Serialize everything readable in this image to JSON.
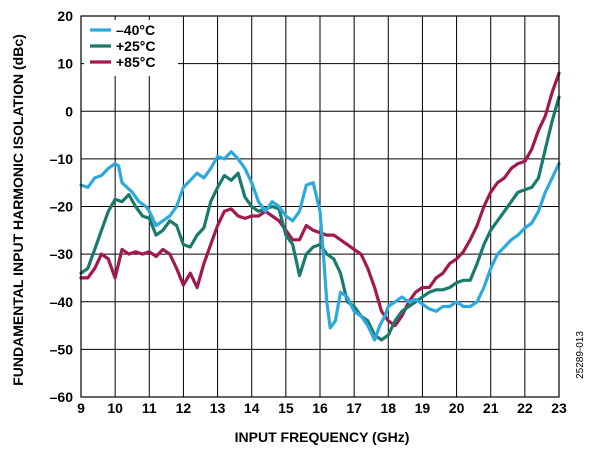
{
  "figure_id": "25289-013",
  "chart_data": {
    "type": "line",
    "title": "",
    "xlabel": "INPUT FREQUENCY (GHz)",
    "ylabel": "FUNDAMENTAL INPUT HARMONIC ISOLATION (dBc)",
    "xlim": [
      9,
      23
    ],
    "ylim": [
      -60,
      20
    ],
    "x_ticks": [
      9,
      10,
      11,
      12,
      13,
      14,
      15,
      16,
      17,
      18,
      19,
      20,
      21,
      22,
      23
    ],
    "y_ticks": [
      -60,
      -50,
      -40,
      -30,
      -20,
      -10,
      0,
      10,
      20
    ],
    "x_tick_labels": [
      "9",
      "10",
      "11",
      "12",
      "13",
      "14",
      "15",
      "16",
      "17",
      "18",
      "19",
      "20",
      "21",
      "22",
      "23"
    ],
    "y_tick_labels": [
      "–60",
      "–50",
      "–40",
      "–30",
      "–20",
      "–10",
      "0",
      "10",
      "20"
    ],
    "grid": true,
    "legend_position": "top-left",
    "series": [
      {
        "name": "–40°C",
        "color": "#2ea9df",
        "points": [
          [
            9.0,
            -15.5
          ],
          [
            9.2,
            -16
          ],
          [
            9.4,
            -14
          ],
          [
            9.6,
            -13.5
          ],
          [
            9.8,
            -12
          ],
          [
            10.0,
            -11
          ],
          [
            10.1,
            -11.5
          ],
          [
            10.2,
            -15
          ],
          [
            10.35,
            -16
          ],
          [
            10.5,
            -17
          ],
          [
            10.7,
            -19
          ],
          [
            10.9,
            -20
          ],
          [
            11.0,
            -21
          ],
          [
            11.2,
            -24
          ],
          [
            11.4,
            -23
          ],
          [
            11.6,
            -22
          ],
          [
            11.8,
            -20
          ],
          [
            12.0,
            -16
          ],
          [
            12.2,
            -14.5
          ],
          [
            12.4,
            -13
          ],
          [
            12.6,
            -14
          ],
          [
            12.8,
            -12
          ],
          [
            13.0,
            -9.5
          ],
          [
            13.2,
            -10
          ],
          [
            13.4,
            -8.5
          ],
          [
            13.6,
            -10
          ],
          [
            13.8,
            -12
          ],
          [
            14.0,
            -15
          ],
          [
            14.2,
            -19
          ],
          [
            14.4,
            -21
          ],
          [
            14.6,
            -19
          ],
          [
            14.8,
            -20
          ],
          [
            15.0,
            -22
          ],
          [
            15.2,
            -23
          ],
          [
            15.4,
            -21
          ],
          [
            15.6,
            -15.5
          ],
          [
            15.8,
            -15
          ],
          [
            16.0,
            -21
          ],
          [
            16.1,
            -30
          ],
          [
            16.2,
            -40
          ],
          [
            16.3,
            -45.5
          ],
          [
            16.45,
            -44
          ],
          [
            16.6,
            -38
          ],
          [
            16.8,
            -39
          ],
          [
            17.0,
            -42
          ],
          [
            17.2,
            -43
          ],
          [
            17.4,
            -45
          ],
          [
            17.6,
            -48
          ],
          [
            17.75,
            -45
          ],
          [
            17.9,
            -43
          ],
          [
            18.0,
            -41
          ],
          [
            18.2,
            -40
          ],
          [
            18.4,
            -39
          ],
          [
            18.6,
            -40
          ],
          [
            18.8,
            -39.5
          ],
          [
            19.0,
            -40.5
          ],
          [
            19.2,
            -41.5
          ],
          [
            19.4,
            -42
          ],
          [
            19.6,
            -41
          ],
          [
            19.8,
            -41
          ],
          [
            20.0,
            -40
          ],
          [
            20.2,
            -41
          ],
          [
            20.4,
            -41
          ],
          [
            20.6,
            -40
          ],
          [
            20.8,
            -37
          ],
          [
            21.0,
            -33
          ],
          [
            21.2,
            -30
          ],
          [
            21.4,
            -28.5
          ],
          [
            21.6,
            -27
          ],
          [
            21.8,
            -26
          ],
          [
            22.0,
            -24.5
          ],
          [
            22.2,
            -23.5
          ],
          [
            22.4,
            -21
          ],
          [
            22.6,
            -17
          ],
          [
            22.8,
            -14
          ],
          [
            23.0,
            -11
          ]
        ]
      },
      {
        "name": "+25°C",
        "color": "#1a7a6c",
        "points": [
          [
            9.0,
            -34
          ],
          [
            9.2,
            -33
          ],
          [
            9.4,
            -29
          ],
          [
            9.6,
            -25
          ],
          [
            9.8,
            -21
          ],
          [
            10.0,
            -18.5
          ],
          [
            10.2,
            -19
          ],
          [
            10.4,
            -17.5
          ],
          [
            10.6,
            -20
          ],
          [
            10.8,
            -22
          ],
          [
            11.0,
            -22.5
          ],
          [
            11.2,
            -26
          ],
          [
            11.4,
            -25
          ],
          [
            11.6,
            -23
          ],
          [
            11.8,
            -24
          ],
          [
            12.0,
            -28
          ],
          [
            12.2,
            -28.5
          ],
          [
            12.4,
            -26
          ],
          [
            12.6,
            -24.5
          ],
          [
            12.8,
            -19
          ],
          [
            13.0,
            -16
          ],
          [
            13.2,
            -13.5
          ],
          [
            13.4,
            -14.5
          ],
          [
            13.6,
            -13
          ],
          [
            13.8,
            -18
          ],
          [
            14.0,
            -20
          ],
          [
            14.2,
            -21
          ],
          [
            14.4,
            -20.5
          ],
          [
            14.6,
            -20
          ],
          [
            14.8,
            -20.5
          ],
          [
            15.0,
            -26
          ],
          [
            15.2,
            -28
          ],
          [
            15.4,
            -34.5
          ],
          [
            15.6,
            -30
          ],
          [
            15.8,
            -28.5
          ],
          [
            16.0,
            -28
          ],
          [
            16.2,
            -30
          ],
          [
            16.4,
            -31
          ],
          [
            16.6,
            -34
          ],
          [
            16.8,
            -40
          ],
          [
            17.0,
            -41
          ],
          [
            17.2,
            -43
          ],
          [
            17.4,
            -44
          ],
          [
            17.6,
            -47
          ],
          [
            17.8,
            -48
          ],
          [
            18.0,
            -47
          ],
          [
            18.2,
            -44
          ],
          [
            18.4,
            -42
          ],
          [
            18.6,
            -41
          ],
          [
            18.8,
            -40
          ],
          [
            19.0,
            -39
          ],
          [
            19.2,
            -38
          ],
          [
            19.4,
            -37.5
          ],
          [
            19.6,
            -37.5
          ],
          [
            19.8,
            -37
          ],
          [
            20.0,
            -36
          ],
          [
            20.2,
            -35.5
          ],
          [
            20.4,
            -35.5
          ],
          [
            20.6,
            -32
          ],
          [
            20.8,
            -28
          ],
          [
            21.0,
            -25
          ],
          [
            21.2,
            -23
          ],
          [
            21.4,
            -21
          ],
          [
            21.6,
            -19
          ],
          [
            21.8,
            -17
          ],
          [
            22.0,
            -16.5
          ],
          [
            22.2,
            -16
          ],
          [
            22.4,
            -14
          ],
          [
            22.6,
            -8
          ],
          [
            22.8,
            -2
          ],
          [
            23.0,
            3
          ]
        ]
      },
      {
        "name": "+85°C",
        "color": "#a1194e",
        "points": [
          [
            9.0,
            -35
          ],
          [
            9.2,
            -35
          ],
          [
            9.4,
            -33
          ],
          [
            9.6,
            -30
          ],
          [
            9.8,
            -31
          ],
          [
            10.0,
            -35
          ],
          [
            10.2,
            -29
          ],
          [
            10.4,
            -30
          ],
          [
            10.6,
            -29.5
          ],
          [
            10.8,
            -30
          ],
          [
            11.0,
            -29.5
          ],
          [
            11.2,
            -30.5
          ],
          [
            11.4,
            -29
          ],
          [
            11.6,
            -30
          ],
          [
            11.8,
            -33
          ],
          [
            12.0,
            -36.5
          ],
          [
            12.2,
            -34
          ],
          [
            12.4,
            -37
          ],
          [
            12.6,
            -32
          ],
          [
            12.8,
            -28
          ],
          [
            13.0,
            -24
          ],
          [
            13.2,
            -21
          ],
          [
            13.4,
            -20.5
          ],
          [
            13.6,
            -22
          ],
          [
            13.8,
            -22.5
          ],
          [
            14.0,
            -22
          ],
          [
            14.2,
            -22
          ],
          [
            14.4,
            -21
          ],
          [
            14.6,
            -22
          ],
          [
            14.8,
            -23
          ],
          [
            15.0,
            -25
          ],
          [
            15.2,
            -27
          ],
          [
            15.4,
            -27
          ],
          [
            15.6,
            -24
          ],
          [
            15.8,
            -25
          ],
          [
            16.0,
            -25.5
          ],
          [
            16.2,
            -26
          ],
          [
            16.4,
            -26
          ],
          [
            16.6,
            -27
          ],
          [
            16.8,
            -28
          ],
          [
            17.0,
            -29
          ],
          [
            17.2,
            -30
          ],
          [
            17.4,
            -33
          ],
          [
            17.6,
            -37
          ],
          [
            17.8,
            -42
          ],
          [
            18.0,
            -44
          ],
          [
            18.2,
            -45
          ],
          [
            18.4,
            -43
          ],
          [
            18.6,
            -40
          ],
          [
            18.8,
            -38
          ],
          [
            19.0,
            -37
          ],
          [
            19.2,
            -37
          ],
          [
            19.4,
            -35
          ],
          [
            19.6,
            -34
          ],
          [
            19.8,
            -32
          ],
          [
            20.0,
            -31
          ],
          [
            20.2,
            -29.5
          ],
          [
            20.4,
            -27
          ],
          [
            20.6,
            -24
          ],
          [
            20.8,
            -20
          ],
          [
            21.0,
            -17
          ],
          [
            21.2,
            -15
          ],
          [
            21.4,
            -14
          ],
          [
            21.6,
            -12
          ],
          [
            21.8,
            -11
          ],
          [
            22.0,
            -10.5
          ],
          [
            22.2,
            -8
          ],
          [
            22.4,
            -4
          ],
          [
            22.6,
            -1
          ],
          [
            22.8,
            4
          ],
          [
            23.0,
            8
          ]
        ]
      }
    ]
  }
}
